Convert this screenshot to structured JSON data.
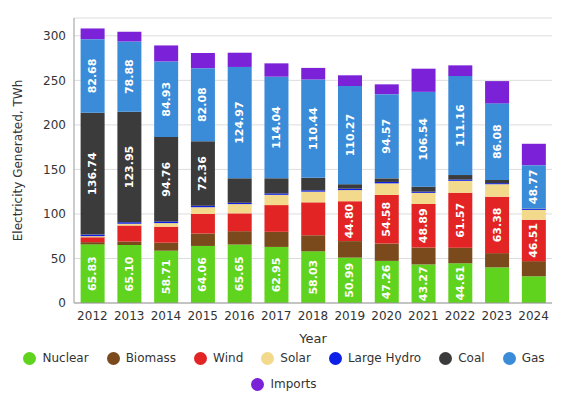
{
  "chart_data": {
    "type": "bar",
    "stacked": true,
    "grid": true,
    "data_labels": true,
    "legend": "bottom",
    "x_label": "Year",
    "y_label": "Electricity Generated, TWh",
    "categories": [
      "2012",
      "2013",
      "2014",
      "2015",
      "2016",
      "2017",
      "2018",
      "2019",
      "2020",
      "2021",
      "2022",
      "2023",
      "2024"
    ],
    "ylim": [
      0,
      320
    ],
    "yticks": [
      0,
      50,
      100,
      150,
      200,
      250,
      300
    ],
    "series": [
      {
        "name": "Nuclear",
        "color": "#5fd31e",
        "values": [
          65.83,
          65.1,
          58.71,
          64.06,
          65.65,
          62.95,
          58.03,
          50.99,
          47.26,
          43.27,
          44.61,
          40,
          30
        ],
        "value_labels": [
          "65.83",
          "65.10",
          "58.71",
          "64.06",
          "65.65",
          "62.95",
          "58.03",
          "50.99",
          "47.26",
          "43.27",
          "44.61",
          null,
          null
        ]
      },
      {
        "name": "Biomass",
        "color": "#7b4a1c",
        "values": [
          2.5,
          4,
          9,
          14,
          15,
          17,
          18,
          18.5,
          19.5,
          19,
          17.5,
          16,
          17
        ]
      },
      {
        "name": "Wind",
        "color": "#e32424",
        "values": [
          5.5,
          18,
          18,
          22,
          20,
          30,
          37,
          44.8,
          54.58,
          48.89,
          61.57,
          63.38,
          46.51
        ],
        "value_labels": [
          null,
          null,
          null,
          null,
          null,
          null,
          null,
          "44.80",
          "54.58",
          "48.89",
          "61.57",
          "63.38",
          "46.51"
        ]
      },
      {
        "name": "Solar",
        "color": "#f3d98c",
        "values": [
          1.2,
          2,
          4,
          7.5,
          10.4,
          11.5,
          12,
          12.5,
          13,
          12.5,
          13.5,
          14,
          11
        ]
      },
      {
        "name": "Large Hydro",
        "color": "#0b1fe6",
        "values": [
          1.8,
          1.6,
          1.8,
          1.7,
          1.5,
          1.6,
          1.5,
          1.6,
          1.6,
          1.4,
          1.5,
          1.2,
          1
        ]
      },
      {
        "name": "Coal",
        "color": "#3b3b3b",
        "values": [
          136.74,
          123.95,
          94.76,
          72.36,
          27.5,
          17,
          14,
          5,
          4,
          5.5,
          5,
          3.5,
          0.5
        ],
        "value_labels": [
          "136.74",
          "123.95",
          "94.76",
          "72.36",
          null,
          null,
          null,
          null,
          null,
          null,
          null,
          null,
          null
        ]
      },
      {
        "name": "Gas",
        "color": "#3a8bd8",
        "values": [
          82.68,
          78.88,
          84.93,
          82.08,
          124.97,
          114.04,
          110.44,
          110.27,
          94.57,
          106.54,
          111.16,
          86.08,
          48.77
        ],
        "value_labels": [
          "82.68",
          "78.88",
          "84.93",
          "82.08",
          "124.97",
          "114.04",
          "110.44",
          "110.27",
          "94.57",
          "106.54",
          "111.16",
          "86.08",
          "48.77"
        ]
      },
      {
        "name": "Imports",
        "color": "#7b22d8",
        "values": [
          12,
          11,
          18,
          17,
          16,
          15,
          13,
          12,
          11,
          26,
          12,
          25,
          24
        ]
      }
    ]
  }
}
